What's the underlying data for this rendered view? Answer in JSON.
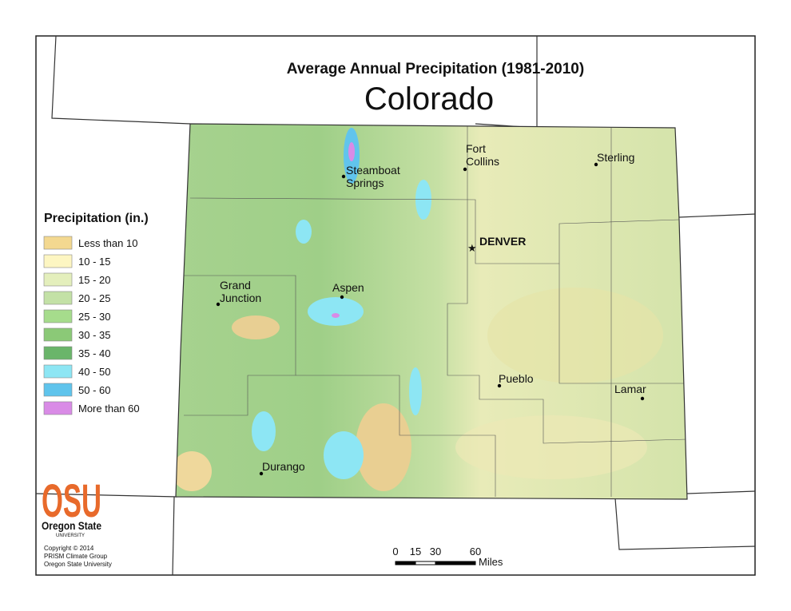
{
  "title": "Average Annual Precipitation (1981-2010)",
  "subtitle": "Colorado",
  "legend": {
    "title": "Precipitation (in.)",
    "items": [
      {
        "label": "Less than 10",
        "color": "#f3d890"
      },
      {
        "label": "10 - 15",
        "color": "#fdf6c2"
      },
      {
        "label": "15 - 20",
        "color": "#e4efbc"
      },
      {
        "label": "20 - 25",
        "color": "#c3e1a6"
      },
      {
        "label": "25 - 30",
        "color": "#a6dc8c"
      },
      {
        "label": "30 - 35",
        "color": "#8bc977"
      },
      {
        "label": "35 - 40",
        "color": "#6ab56a"
      },
      {
        "label": "40 - 50",
        "color": "#8de6f4"
      },
      {
        "label": "50 - 60",
        "color": "#5fc4ec"
      },
      {
        "label": "More than 60",
        "color": "#d98be6"
      }
    ]
  },
  "cities": [
    {
      "lines": [
        "Fort",
        "Collins"
      ]
    },
    {
      "lines": [
        "Sterling"
      ]
    },
    {
      "lines": [
        "Steamboat",
        "Springs"
      ]
    },
    {
      "lines": [
        "DENVER"
      ]
    },
    {
      "lines": [
        "Grand",
        "Junction"
      ]
    },
    {
      "lines": [
        "Aspen"
      ]
    },
    {
      "lines": [
        "Pueblo"
      ]
    },
    {
      "lines": [
        "Lamar"
      ]
    },
    {
      "lines": [
        "Durango"
      ]
    }
  ],
  "logo": {
    "mark": "OSU",
    "name": "Oregon State",
    "sub": "UNIVERSITY"
  },
  "copyright": [
    "Copyright © 2014",
    "PRISM Climate Group",
    "Oregon State University"
  ],
  "scale": {
    "ticks": [
      0,
      15,
      30,
      60
    ],
    "unit": "Miles"
  }
}
